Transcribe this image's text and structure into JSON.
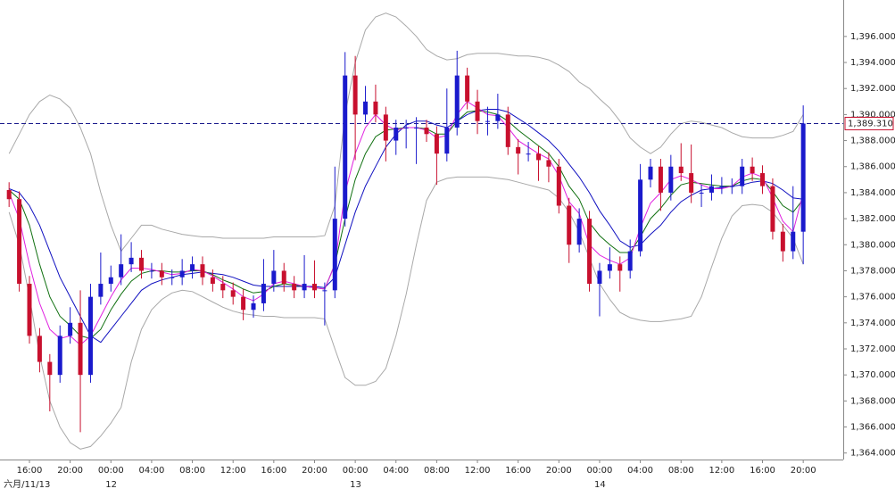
{
  "chart_data": {
    "type": "candlestick",
    "categories": [
      null,
      null,
      "16:00",
      null,
      null,
      null,
      "20:00",
      null,
      null,
      null,
      "00:00",
      null,
      null,
      null,
      "04:00",
      null,
      null,
      null,
      "08:00",
      null,
      null,
      null,
      "12:00",
      null,
      null,
      null,
      "16:00",
      null,
      null,
      null,
      "20:00",
      null,
      null,
      null,
      "00:00",
      null,
      null,
      null,
      "04:00",
      null,
      null,
      null,
      "08:00",
      null,
      null,
      null,
      "12:00",
      null,
      null,
      null,
      "16:00",
      null,
      null,
      null,
      "20:00",
      null,
      null,
      null,
      "00:00",
      null,
      null,
      null,
      "04:00",
      null,
      null,
      null,
      "08:00",
      null,
      null,
      null,
      "12:00",
      null,
      null,
      null,
      "16:00",
      null,
      null,
      null,
      "20:00"
    ],
    "dates": [
      "六月/11/13",
      null,
      null,
      null,
      null,
      null,
      null,
      null,
      null,
      null,
      "12",
      null,
      null,
      null,
      null,
      null,
      null,
      null,
      null,
      null,
      null,
      null,
      null,
      null,
      null,
      null,
      null,
      null,
      null,
      null,
      null,
      null,
      null,
      null,
      "13",
      null,
      null,
      null,
      null,
      null,
      null,
      null,
      null,
      null,
      null,
      null,
      null,
      null,
      null,
      null,
      null,
      null,
      null,
      null,
      null,
      null,
      null,
      null,
      "14",
      null,
      null,
      null,
      null,
      null,
      null,
      null,
      null,
      null,
      null,
      null,
      null,
      null,
      null,
      null,
      null,
      null,
      null,
      null,
      null
    ],
    "open": [
      1384.2,
      1383.5,
      1377,
      1373,
      1371,
      1370,
      1373,
      1374,
      1370,
      1376,
      1377,
      1377.5,
      1378.5,
      1379,
      1378,
      1378,
      1377.5,
      1377.5,
      1378,
      1378.5,
      1377.5,
      1377,
      1376.5,
      1376,
      1375,
      1375.5,
      1377,
      1378,
      1377,
      1376.5,
      1377,
      1376.5,
      1376.5,
      1382,
      1393,
      1390,
      1391,
      1390,
      1388,
      1389,
      1389,
      1389,
      1388.5,
      1387,
      1389,
      1393,
      1391,
      1389.5,
      1389.5,
      1390,
      1387.5,
      1387,
      1387,
      1386.5,
      1386,
      1383,
      1380,
      1382,
      1377,
      1378,
      1378.5,
      1378,
      1379.5,
      1385,
      1386,
      1384,
      1386,
      1385.5,
      1384,
      1384,
      1384.5,
      1384.5,
      1384.5,
      1386,
      1385.5,
      1384.5,
      1381,
      1379.5,
      1381
    ],
    "high": [
      1384.8,
      1384.1,
      1377.6,
      1373.6,
      1371.6,
      1373.8,
      1375.2,
      1376.5,
      1377,
      1379.4,
      1378.4,
      1380.8,
      1380.2,
      1379.6,
      1378.6,
      1378.6,
      1378.1,
      1378.9,
      1379.1,
      1379.1,
      1378.1,
      1377.6,
      1377.1,
      1376.6,
      1376.1,
      1378.9,
      1379.6,
      1378.6,
      1377.6,
      1379.2,
      1378.8,
      1377.1,
      1386,
      1394.8,
      1394.5,
      1392.2,
      1392.3,
      1390.6,
      1389.6,
      1389.6,
      1389.8,
      1389.6,
      1389.1,
      1392,
      1394.9,
      1393.6,
      1391.9,
      1390.6,
      1391.6,
      1390.6,
      1388.1,
      1387.9,
      1387.6,
      1387.1,
      1386.6,
      1383.6,
      1382.8,
      1382.6,
      1378.6,
      1379.8,
      1379.1,
      1380.4,
      1386.2,
      1386.6,
      1386.6,
      1386.9,
      1387.8,
      1387.7,
      1384.6,
      1385.4,
      1385.2,
      1385.1,
      1386.6,
      1386.7,
      1386.1,
      1385.1,
      1381.6,
      1384.5,
      1390.7
    ],
    "low": [
      1382.9,
      1376.4,
      1372.4,
      1370.2,
      1367.2,
      1369.4,
      1372.4,
      1365.6,
      1369.4,
      1375.4,
      1376.4,
      1376.9,
      1377.9,
      1377.4,
      1377.4,
      1376.9,
      1376.9,
      1376.9,
      1377.4,
      1376.9,
      1376.4,
      1375.9,
      1375.4,
      1374.2,
      1374.4,
      1374.9,
      1376.4,
      1376.4,
      1375.9,
      1375.9,
      1375.9,
      1373.8,
      1375.9,
      1381.4,
      1386.5,
      1389.4,
      1389.4,
      1386.4,
      1386.9,
      1387.4,
      1386.2,
      1387.9,
      1384.6,
      1386.4,
      1388.4,
      1390.4,
      1388.5,
      1388.4,
      1388.9,
      1386.9,
      1385.4,
      1386.4,
      1384.9,
      1384.8,
      1382.4,
      1378.6,
      1379.4,
      1376.4,
      1374.5,
      1377.4,
      1376.4,
      1377.4,
      1379.1,
      1384.4,
      1382.6,
      1383.4,
      1384.9,
      1383.2,
      1382.9,
      1383.4,
      1383.9,
      1383.9,
      1383.9,
      1384.9,
      1383.9,
      1380.4,
      1378.7,
      1378.9,
      1378.5
    ],
    "close": [
      1383.5,
      1377,
      1373,
      1371,
      1370,
      1373,
      1374,
      1370,
      1376,
      1377,
      1377.5,
      1378.5,
      1379,
      1378,
      1378,
      1377.5,
      1377.5,
      1378,
      1378.5,
      1377.5,
      1377,
      1376.5,
      1376,
      1375,
      1375.5,
      1377,
      1378,
      1377,
      1376.5,
      1377,
      1376.5,
      1376.5,
      1382,
      1393,
      1390,
      1391,
      1390,
      1388,
      1389,
      1389,
      1389,
      1388.5,
      1387,
      1389,
      1393,
      1391,
      1389.5,
      1389.5,
      1390,
      1387.5,
      1387,
      1387,
      1386.5,
      1386,
      1383,
      1380,
      1382,
      1377,
      1378,
      1378.5,
      1378,
      1379.5,
      1385,
      1386,
      1384,
      1386,
      1385.5,
      1384,
      1384,
      1384.5,
      1384.5,
      1384.5,
      1386,
      1385.5,
      1384.5,
      1381,
      1379.5,
      1381,
      1389.31
    ],
    "up_color": "#1a1acc",
    "down_color": "#c8102e",
    "overlays": [
      {
        "color": "#a8a8a8",
        "values": [
          1387,
          1388.5,
          1390,
          1391,
          1391.5,
          1391.2,
          1390.5,
          1389,
          1387,
          1384,
          1381.5,
          1379.5,
          1380.5,
          1381.5,
          1381.5,
          1381.2,
          1381,
          1380.8,
          1380.7,
          1380.6,
          1380.6,
          1380.5,
          1380.5,
          1380.5,
          1380.5,
          1380.5,
          1380.6,
          1380.6,
          1380.6,
          1380.6,
          1380.6,
          1380.7,
          1383,
          1390,
          1394,
          1396.5,
          1397.5,
          1397.8,
          1397.5,
          1396.8,
          1396,
          1395,
          1394.5,
          1394.2,
          1394.3,
          1394.6,
          1394.7,
          1394.7,
          1394.7,
          1394.6,
          1394.5,
          1394.5,
          1394.4,
          1394.2,
          1393.8,
          1393.3,
          1392.5,
          1392,
          1391.2,
          1390.5,
          1389.5,
          1388.2,
          1387.5,
          1387,
          1387.5,
          1388.5,
          1389.3,
          1389.5,
          1389.4,
          1389.2,
          1389,
          1388.6,
          1388.3,
          1388.2,
          1388.2,
          1388.2,
          1388.4,
          1388.7,
          1390
        ]
      },
      {
        "color": "#a8a8a8",
        "values": [
          1382.5,
          1380,
          1376,
          1371.5,
          1368,
          1366,
          1364.8,
          1364.3,
          1364.5,
          1365.3,
          1366.3,
          1367.5,
          1371,
          1373.5,
          1375,
          1375.8,
          1376.3,
          1376.5,
          1376.4,
          1376,
          1375.6,
          1375.2,
          1374.9,
          1374.7,
          1374.6,
          1374.5,
          1374.5,
          1374.4,
          1374.4,
          1374.4,
          1374.4,
          1374.3,
          1372,
          1369.8,
          1369.2,
          1369.2,
          1369.5,
          1370.5,
          1373,
          1376.2,
          1380,
          1383.4,
          1384.8,
          1385.1,
          1385.2,
          1385.2,
          1385.2,
          1385.2,
          1385.1,
          1385,
          1384.8,
          1384.6,
          1384.4,
          1384.2,
          1383.6,
          1382.5,
          1381,
          1379,
          1377,
          1375.8,
          1374.8,
          1374.4,
          1374.2,
          1374.1,
          1374.1,
          1374.2,
          1374.3,
          1374.5,
          1376,
          1378.3,
          1380.5,
          1382.2,
          1383,
          1383.1,
          1383,
          1382.5,
          1381.5,
          1380.5,
          1378.5
        ]
      },
      {
        "color": "#1010c0",
        "values": [
          1384.3,
          1384,
          1383,
          1381.5,
          1379.5,
          1377.5,
          1376,
          1374.5,
          1373,
          1372.5,
          1373.5,
          1374.5,
          1375.5,
          1376.5,
          1377,
          1377.3,
          1377.5,
          1377.7,
          1377.8,
          1377.9,
          1377.8,
          1377.7,
          1377.5,
          1377.2,
          1376.9,
          1376.8,
          1376.8,
          1376.8,
          1376.8,
          1376.8,
          1376.8,
          1376.7,
          1377.5,
          1380,
          1382.5,
          1384.5,
          1386,
          1387.5,
          1388.5,
          1389.2,
          1389.5,
          1389.5,
          1389.2,
          1389,
          1389.5,
          1390,
          1390.3,
          1390.4,
          1390.4,
          1390.2,
          1389.7,
          1389.2,
          1388.6,
          1388,
          1387.2,
          1386.2,
          1385.2,
          1384,
          1382.6,
          1381.5,
          1380.3,
          1379.8,
          1380,
          1380.8,
          1381.5,
          1382.5,
          1383.3,
          1383.8,
          1384.2,
          1384.3,
          1384.4,
          1384.5,
          1384.6,
          1384.8,
          1384.9,
          1384.7,
          1384.2,
          1383.6,
          1383.5
        ]
      },
      {
        "color": "#107010",
        "values": [
          1384.2,
          1383.5,
          1381.5,
          1378.5,
          1376,
          1374.5,
          1373.8,
          1373,
          1372.8,
          1373.5,
          1375,
          1376.2,
          1377.2,
          1377.8,
          1378,
          1378,
          1377.9,
          1377.9,
          1378,
          1378,
          1377.7,
          1377.3,
          1377,
          1376.6,
          1376.3,
          1376.4,
          1376.8,
          1377,
          1376.9,
          1376.8,
          1376.7,
          1376.6,
          1378.5,
          1382,
          1385,
          1387,
          1388.3,
          1388.8,
          1388.9,
          1389,
          1389,
          1388.9,
          1388.5,
          1388.5,
          1389.5,
          1390.2,
          1390.3,
          1390.2,
          1390,
          1389.5,
          1388.8,
          1388.2,
          1387.6,
          1387,
          1386,
          1384.5,
          1383.5,
          1381.7,
          1380.7,
          1380,
          1379.4,
          1379.4,
          1380.6,
          1382,
          1382.8,
          1383.8,
          1384.6,
          1384.8,
          1384.7,
          1384.6,
          1384.5,
          1384.5,
          1384.9,
          1385.1,
          1385,
          1384.1,
          1383,
          1382.5,
          1383.5
        ]
      },
      {
        "color": "#e020e0",
        "values": [
          1384,
          1382,
          1378.5,
          1375.5,
          1373.5,
          1372.8,
          1373,
          1372.3,
          1373,
          1374.5,
          1376,
          1377.3,
          1378.2,
          1378.2,
          1378.1,
          1377.9,
          1377.7,
          1377.8,
          1378.1,
          1378,
          1377.6,
          1377.1,
          1376.6,
          1376,
          1375.7,
          1376.2,
          1377,
          1377.2,
          1377,
          1376.8,
          1376.7,
          1376.6,
          1378.5,
          1384,
          1387,
          1389,
          1390,
          1389.2,
          1388.8,
          1389,
          1389,
          1388.8,
          1388.2,
          1388.4,
          1390,
          1391,
          1390.5,
          1390,
          1389.9,
          1389,
          1388,
          1387.5,
          1387,
          1386.6,
          1385.3,
          1383.3,
          1382.4,
          1380,
          1379.2,
          1378.8,
          1378.5,
          1379,
          1381.3,
          1383.2,
          1384,
          1385,
          1385.3,
          1385,
          1384.6,
          1384.3,
          1384.3,
          1384.5,
          1385.2,
          1385.5,
          1385.2,
          1383.6,
          1381.8,
          1381,
          1384
        ]
      }
    ],
    "price_line": {
      "value": 1389.31,
      "label": "1,389.310",
      "color": "#1a1a8c"
    },
    "ylim": [
      1363.5,
      1398.8
    ],
    "yticks": [
      {
        "value": 1364,
        "label": "1,364.000"
      },
      {
        "value": 1366,
        "label": "1,366.000"
      },
      {
        "value": 1368,
        "label": "1,368.000"
      },
      {
        "value": 1370,
        "label": "1,370.000"
      },
      {
        "value": 1372,
        "label": "1,372.000"
      },
      {
        "value": 1374,
        "label": "1,374.000"
      },
      {
        "value": 1376,
        "label": "1,376.000"
      },
      {
        "value": 1378,
        "label": "1,378.000"
      },
      {
        "value": 1380,
        "label": "1,380.000"
      },
      {
        "value": 1382,
        "label": "1,382.000"
      },
      {
        "value": 1384,
        "label": "1,384.000"
      },
      {
        "value": 1386,
        "label": "1,386.000"
      },
      {
        "value": 1388,
        "label": "1,388.000"
      },
      {
        "value": 1390,
        "label": "1,390.000"
      },
      {
        "value": 1392,
        "label": "1,392.000"
      },
      {
        "value": 1394,
        "label": "1,394.000"
      },
      {
        "value": 1396,
        "label": "1,396.000"
      }
    ]
  }
}
